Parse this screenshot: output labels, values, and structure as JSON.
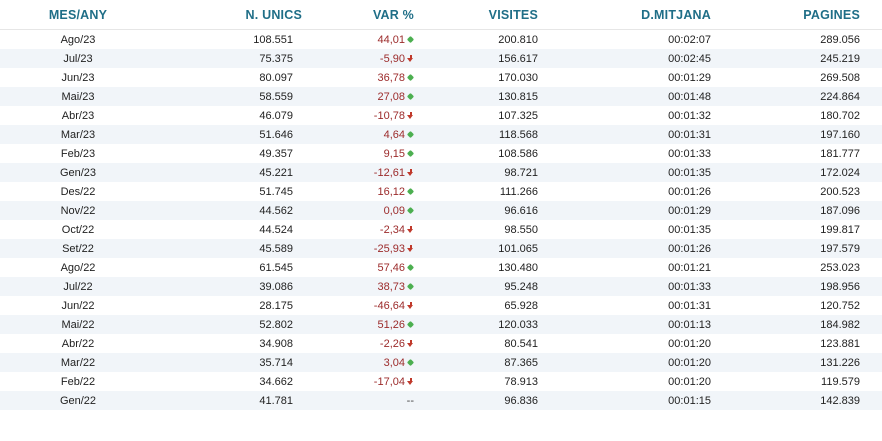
{
  "headers": {
    "period": "MES/ANY",
    "unique": "N. UNICS",
    "variation": "VAR %",
    "visits": "VISITES",
    "avg_duration": "D.MITJANA",
    "pages": "PAGINES"
  },
  "colors": {
    "header_text": "#1f6e87",
    "variation_text": "#9c2b2b",
    "arrow_up": "#4caf50",
    "arrow_down": "#c0392b",
    "row_stripe": "#f1f5f9"
  },
  "rows": [
    {
      "period": "Ago/23",
      "unique": "108.551",
      "variation": "44,01",
      "trend": "up",
      "visits": "200.810",
      "avg_duration": "00:02:07",
      "pages": "289.056"
    },
    {
      "period": "Jul/23",
      "unique": "75.375",
      "variation": "-5,90",
      "trend": "down",
      "visits": "156.617",
      "avg_duration": "00:02:45",
      "pages": "245.219"
    },
    {
      "period": "Jun/23",
      "unique": "80.097",
      "variation": "36,78",
      "trend": "up",
      "visits": "170.030",
      "avg_duration": "00:01:29",
      "pages": "269.508"
    },
    {
      "period": "Mai/23",
      "unique": "58.559",
      "variation": "27,08",
      "trend": "up",
      "visits": "130.815",
      "avg_duration": "00:01:48",
      "pages": "224.864"
    },
    {
      "period": "Abr/23",
      "unique": "46.079",
      "variation": "-10,78",
      "trend": "down",
      "visits": "107.325",
      "avg_duration": "00:01:32",
      "pages": "180.702"
    },
    {
      "period": "Mar/23",
      "unique": "51.646",
      "variation": "4,64",
      "trend": "up",
      "visits": "118.568",
      "avg_duration": "00:01:31",
      "pages": "197.160"
    },
    {
      "period": "Feb/23",
      "unique": "49.357",
      "variation": "9,15",
      "trend": "up",
      "visits": "108.586",
      "avg_duration": "00:01:33",
      "pages": "181.777"
    },
    {
      "period": "Gen/23",
      "unique": "45.221",
      "variation": "-12,61",
      "trend": "down",
      "visits": "98.721",
      "avg_duration": "00:01:35",
      "pages": "172.024"
    },
    {
      "period": "Des/22",
      "unique": "51.745",
      "variation": "16,12",
      "trend": "up",
      "visits": "111.266",
      "avg_duration": "00:01:26",
      "pages": "200.523"
    },
    {
      "period": "Nov/22",
      "unique": "44.562",
      "variation": "0,09",
      "trend": "up",
      "visits": "96.616",
      "avg_duration": "00:01:29",
      "pages": "187.096"
    },
    {
      "period": "Oct/22",
      "unique": "44.524",
      "variation": "-2,34",
      "trend": "down",
      "visits": "98.550",
      "avg_duration": "00:01:35",
      "pages": "199.817"
    },
    {
      "period": "Set/22",
      "unique": "45.589",
      "variation": "-25,93",
      "trend": "down",
      "visits": "101.065",
      "avg_duration": "00:01:26",
      "pages": "197.579"
    },
    {
      "period": "Ago/22",
      "unique": "61.545",
      "variation": "57,46",
      "trend": "up",
      "visits": "130.480",
      "avg_duration": "00:01:21",
      "pages": "253.023"
    },
    {
      "period": "Jul/22",
      "unique": "39.086",
      "variation": "38,73",
      "trend": "up",
      "visits": "95.248",
      "avg_duration": "00:01:33",
      "pages": "198.956"
    },
    {
      "period": "Jun/22",
      "unique": "28.175",
      "variation": "-46,64",
      "trend": "down",
      "visits": "65.928",
      "avg_duration": "00:01:31",
      "pages": "120.752"
    },
    {
      "period": "Mai/22",
      "unique": "52.802",
      "variation": "51,26",
      "trend": "up",
      "visits": "120.033",
      "avg_duration": "00:01:13",
      "pages": "184.982"
    },
    {
      "period": "Abr/22",
      "unique": "34.908",
      "variation": "-2,26",
      "trend": "down",
      "visits": "80.541",
      "avg_duration": "00:01:20",
      "pages": "123.881"
    },
    {
      "period": "Mar/22",
      "unique": "35.714",
      "variation": "3,04",
      "trend": "up",
      "visits": "87.365",
      "avg_duration": "00:01:20",
      "pages": "131.226"
    },
    {
      "period": "Feb/22",
      "unique": "34.662",
      "variation": "-17,04",
      "trend": "down",
      "visits": "78.913",
      "avg_duration": "00:01:20",
      "pages": "119.579"
    },
    {
      "period": "Gen/22",
      "unique": "41.781",
      "variation": "--",
      "trend": "none",
      "visits": "96.836",
      "avg_duration": "00:01:15",
      "pages": "142.839"
    }
  ]
}
